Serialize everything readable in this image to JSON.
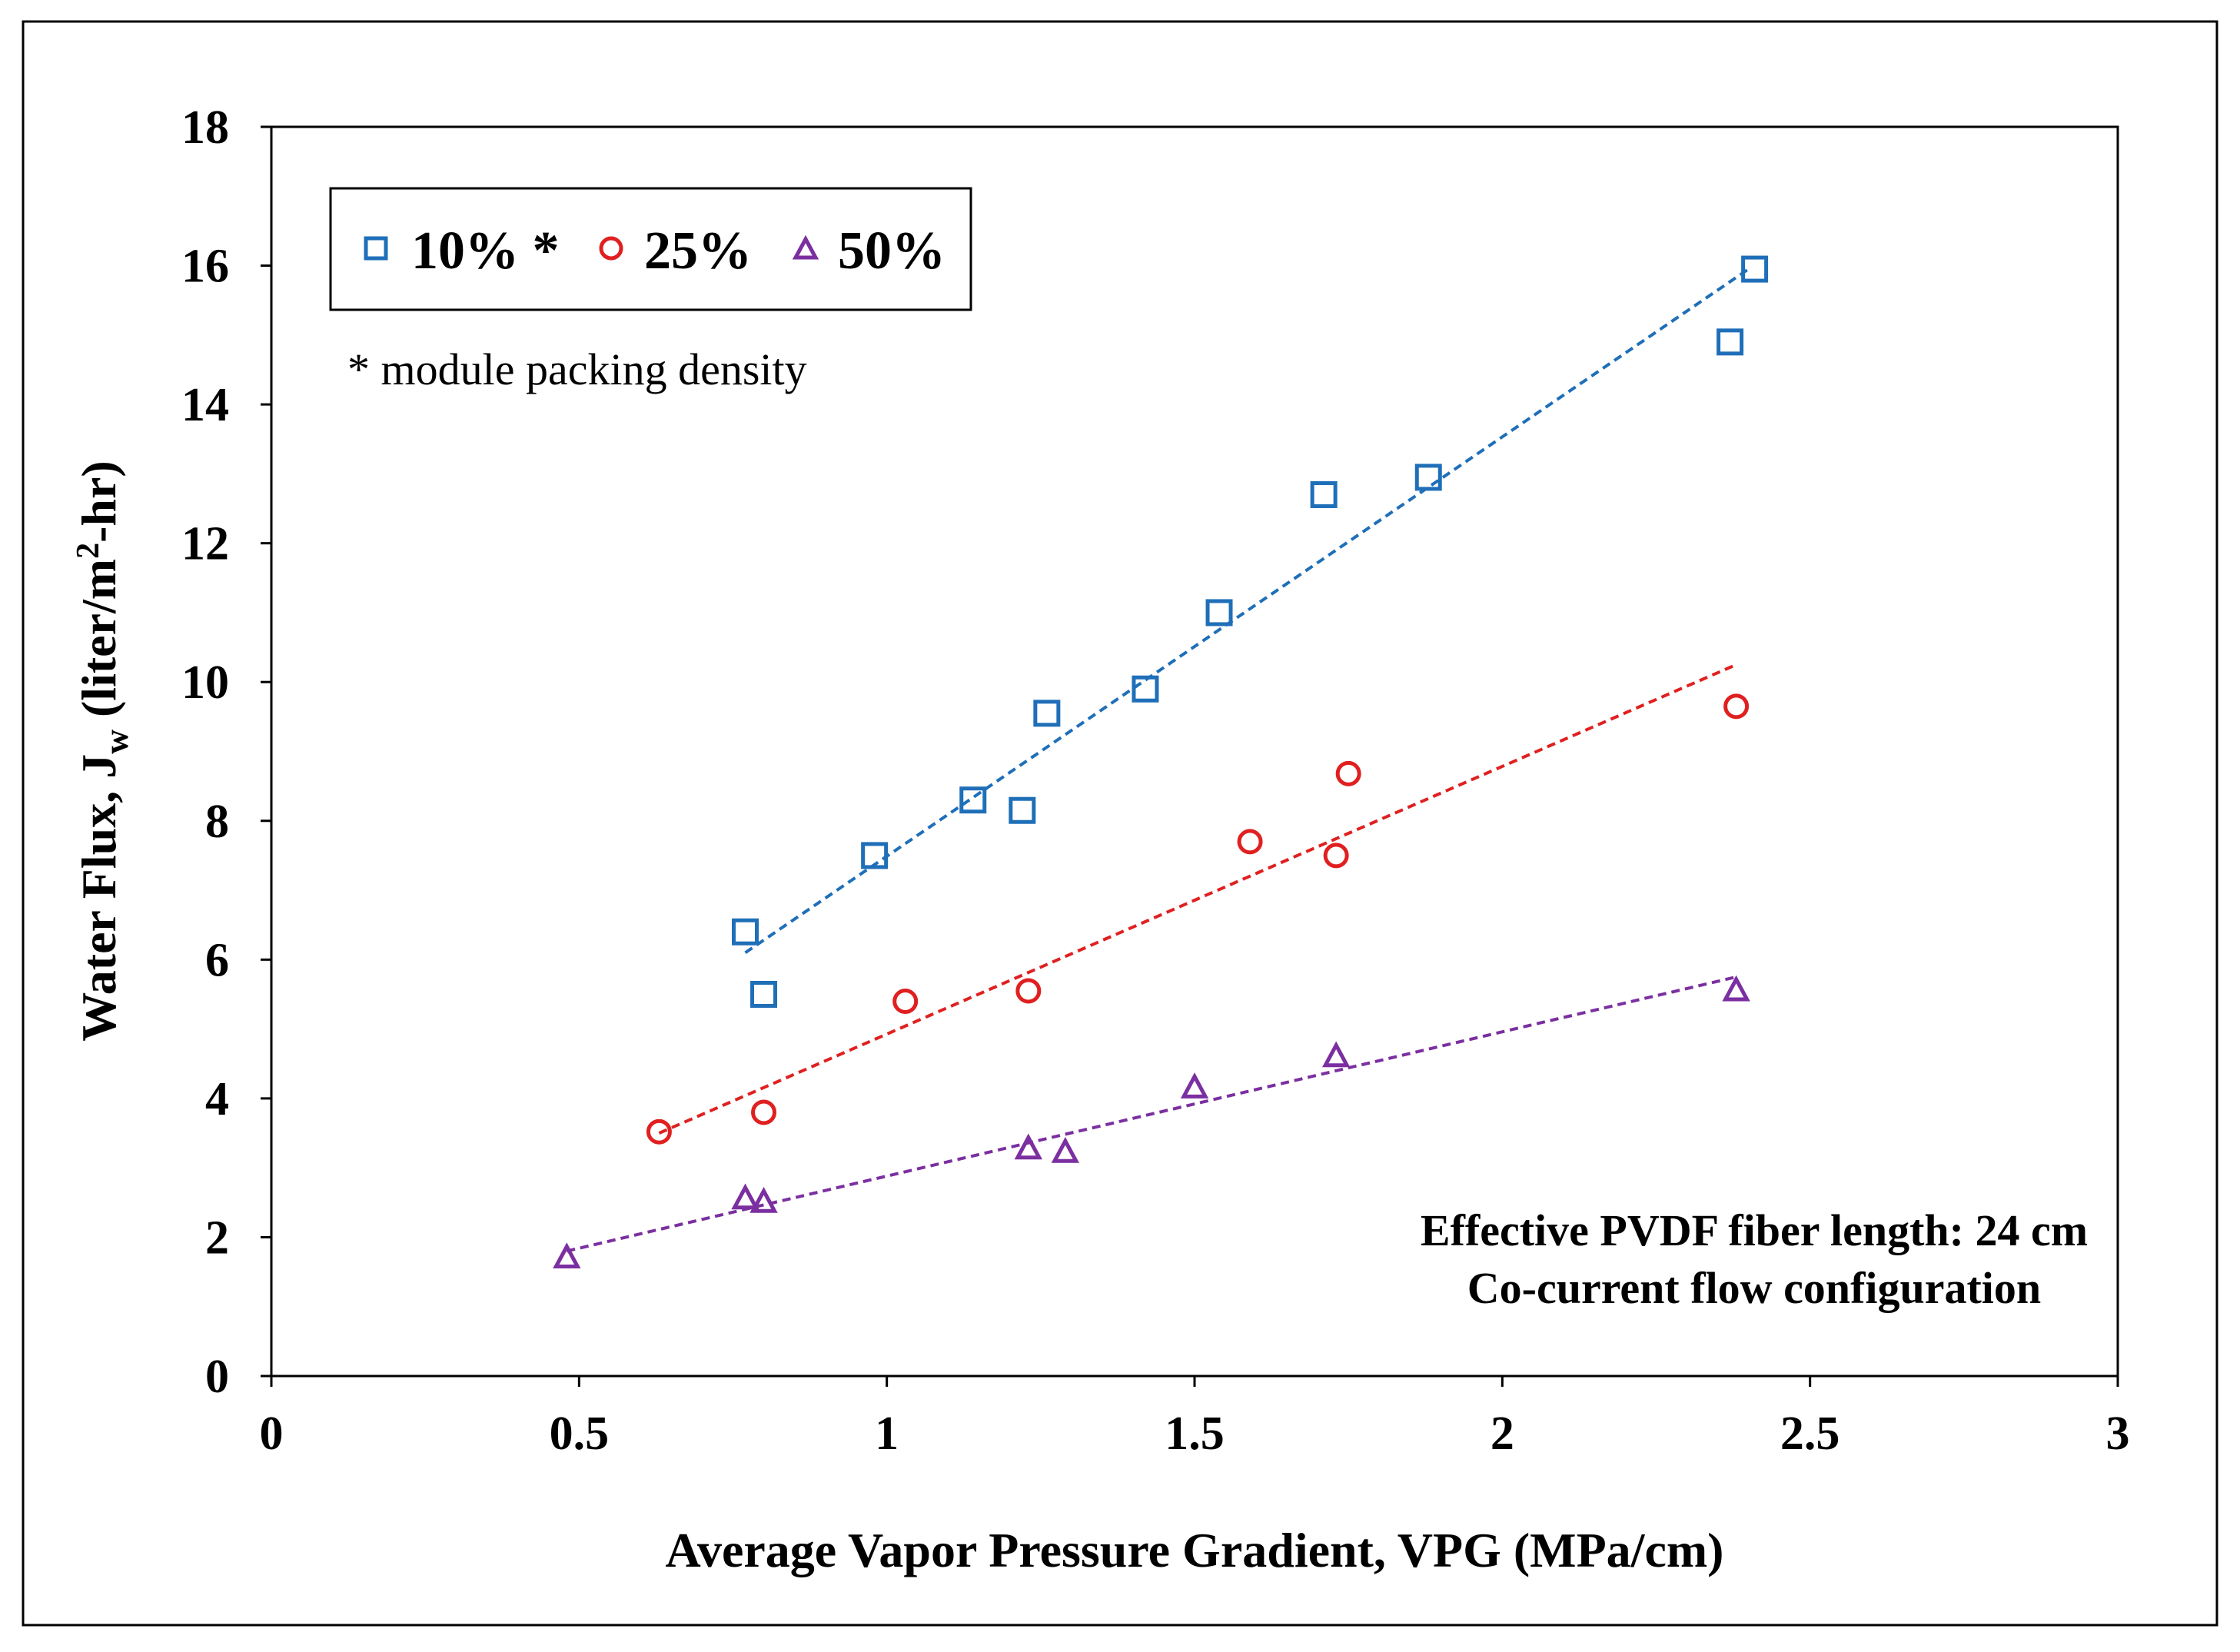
{
  "chart_data": {
    "type": "scatter",
    "title": "",
    "xlabel": "Average Vapor Pressure Gradient, VPG (MPa/cm)",
    "ylabel_parts": {
      "main": "Water Flux, J",
      "sub": "w",
      "unit_pre": " (liter/m",
      "sup": "2",
      "unit_post": "-hr)"
    },
    "xlim": [
      0,
      3
    ],
    "ylim": [
      0,
      18
    ],
    "xticks": [
      0,
      0.5,
      1,
      1.5,
      2,
      2.5,
      3
    ],
    "xtick_labels": [
      "0",
      "0.5",
      "1",
      "1.5",
      "2",
      "2.5",
      "3"
    ],
    "yticks": [
      0,
      2,
      4,
      6,
      8,
      10,
      12,
      14,
      16,
      18
    ],
    "ytick_labels": [
      "0",
      "2",
      "4",
      "6",
      "8",
      "10",
      "12",
      "14",
      "16",
      "18"
    ],
    "grid": false,
    "legend_position": "top-left",
    "series": [
      {
        "name": "10% *",
        "marker": "square",
        "color": "#1f6fb8",
        "x": [
          0.77,
          0.8,
          0.98,
          1.14,
          1.22,
          1.26,
          1.42,
          1.54,
          1.71,
          1.88,
          2.37,
          2.41
        ],
        "y": [
          6.4,
          5.5,
          7.5,
          8.3,
          8.15,
          9.55,
          9.9,
          11.0,
          12.7,
          12.95,
          14.9,
          15.95
        ],
        "trendline": {
          "x": [
            0.77,
            2.4
          ],
          "y": [
            6.1,
            15.95
          ]
        }
      },
      {
        "name": "25%",
        "marker": "circle",
        "color": "#e02020",
        "x": [
          0.63,
          0.8,
          1.03,
          1.23,
          1.59,
          1.73,
          1.75,
          2.38
        ],
        "y": [
          3.52,
          3.8,
          5.4,
          5.55,
          7.7,
          7.5,
          8.68,
          9.65
        ],
        "trendline": {
          "x": [
            0.63,
            2.38
          ],
          "y": [
            3.5,
            10.25
          ]
        }
      },
      {
        "name": "50%",
        "marker": "triangle",
        "color": "#7b2fa0",
        "x": [
          0.48,
          0.77,
          0.8,
          1.23,
          1.29,
          1.5,
          1.73,
          2.38
        ],
        "y": [
          1.7,
          2.55,
          2.5,
          3.27,
          3.22,
          4.15,
          4.6,
          5.55
        ],
        "trendline": {
          "x": [
            0.48,
            2.38
          ],
          "y": [
            1.8,
            5.75
          ]
        }
      }
    ],
    "note": "* module packing density",
    "annotations": [
      "Effective PVDF fiber length: 24 cm",
      "Co-current  flow configuration"
    ]
  }
}
